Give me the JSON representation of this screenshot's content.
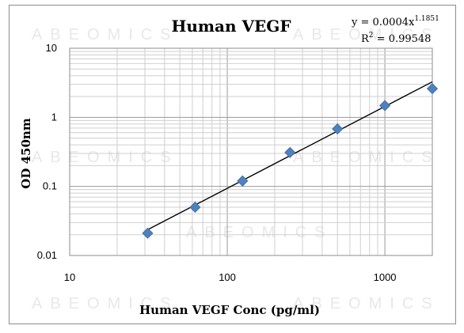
{
  "chart_data": {
    "type": "scatter",
    "title": "Human VEGF",
    "xlabel": "Human VEGF Conc (pg/ml)",
    "ylabel": "OD 450nm",
    "x_scale": "log",
    "y_scale": "log",
    "xlim": [
      10,
      2000
    ],
    "ylim": [
      0.01,
      10
    ],
    "x_ticks": [
      10,
      100,
      1000
    ],
    "x_tick_labels": [
      "10",
      "100",
      "1000"
    ],
    "y_ticks": [
      0.01,
      0.1,
      1,
      10
    ],
    "y_tick_labels": [
      "0.01",
      "0.1",
      "1",
      "10"
    ],
    "grid": "major and minor",
    "legend": "none",
    "marker_color": "#4f81bd",
    "trendline_color": "#000000",
    "series": [
      {
        "x": [
          31.25,
          62.5,
          125,
          250,
          500,
          1000,
          2000
        ],
        "y": [
          0.021,
          0.05,
          0.12,
          0.31,
          0.68,
          1.48,
          2.6
        ]
      }
    ],
    "trendline": {
      "type": "power",
      "coefficient": 0.0004,
      "exponent": 1.1851,
      "x_range": [
        31.25,
        2000
      ],
      "equation_prefix": "y = 0.0004x",
      "equation_exponent": "1.1851",
      "r2_prefix": "R",
      "r2_sup": "2",
      "r2_value": " = 0.99548"
    },
    "watermark": "ABEOMICS"
  }
}
